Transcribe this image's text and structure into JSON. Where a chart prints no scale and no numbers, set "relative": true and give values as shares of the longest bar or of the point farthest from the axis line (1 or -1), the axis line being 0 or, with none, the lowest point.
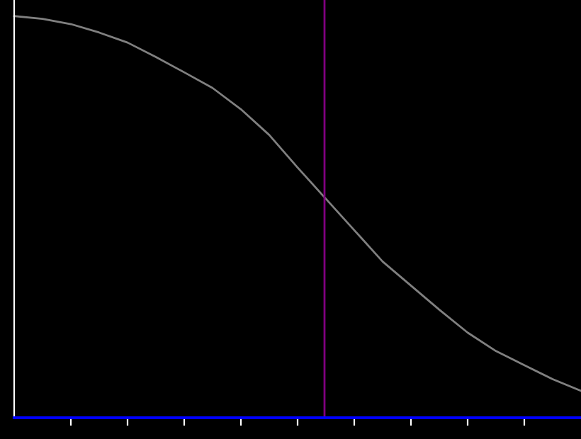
{
  "chart_data": {
    "type": "line",
    "relative": true,
    "categories": [
      null,
      null,
      null,
      null,
      null,
      null,
      null,
      null,
      null,
      null,
      null,
      null,
      null,
      null,
      null,
      null,
      null,
      null,
      null,
      null,
      null
    ],
    "series": [
      {
        "color": "#808080",
        "values": [
          1,
          0.993,
          0.98,
          0.959,
          0.934,
          0.898,
          0.86,
          0.821,
          0.768,
          0.704,
          0.623,
          0.545,
          0.467,
          0.389,
          0.329,
          0.269,
          0.212,
          0.166,
          0.131,
          0.096,
          0.067
        ]
      }
    ],
    "grid": false,
    "legend": false,
    "marker": "none",
    "line_style": "solid"
  }
}
